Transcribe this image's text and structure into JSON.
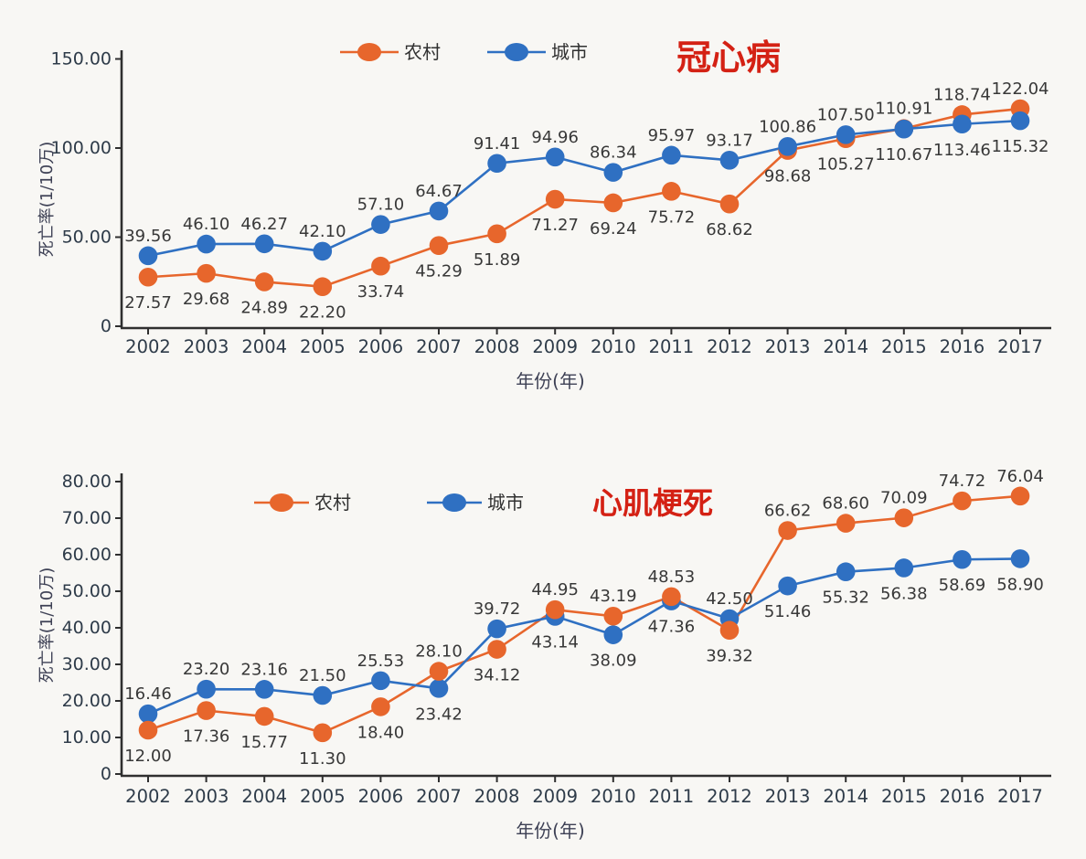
{
  "page": {
    "background": "#f8f7f4"
  },
  "colors": {
    "rural": "#e7662c",
    "urban": "#2f70c2",
    "chart_title": "#d42114",
    "data_label": "#383838",
    "tick_label": "#2e3b49",
    "axis_title": "#3e4155",
    "axis_line": "#2f2f2f",
    "legend_text": "#303030"
  },
  "legend": {
    "rural": "农村",
    "urban": "城市"
  },
  "axes": {
    "x_title": "年份(年)",
    "y_title": "死亡率(1/10万)"
  },
  "chart_data": [
    {
      "type": "line",
      "title": "冠心病",
      "xlabel": "年份(年)",
      "ylabel": "死亡率(1/10万)",
      "x": [
        "2002",
        "2003",
        "2004",
        "2005",
        "2006",
        "2007",
        "2008",
        "2009",
        "2010",
        "2011",
        "2012",
        "2013",
        "2014",
        "2015",
        "2016",
        "2017"
      ],
      "ylim": [
        0,
        150
      ],
      "ytick_values": [
        0,
        50,
        100,
        150
      ],
      "ytick_labels": [
        "0",
        "50.00",
        "100.00",
        "150.00"
      ],
      "grid": false,
      "legend_position": "top-center",
      "value_format": "0.00",
      "series": [
        {
          "name": "农村",
          "key": "rural",
          "values": [
            27.57,
            29.68,
            24.89,
            22.2,
            33.74,
            45.29,
            51.89,
            71.27,
            69.24,
            75.72,
            68.62,
            98.68,
            105.27,
            110.91,
            118.74,
            122.04
          ]
        },
        {
          "name": "城市",
          "key": "urban",
          "values": [
            39.56,
            46.1,
            46.27,
            42.1,
            57.1,
            64.67,
            91.41,
            94.96,
            86.34,
            95.97,
            93.17,
            100.86,
            107.5,
            110.67,
            113.46,
            115.32
          ]
        }
      ]
    },
    {
      "type": "line",
      "title": "心肌梗死",
      "xlabel": "年份(年)",
      "ylabel": "死亡率(1/10万)",
      "x": [
        "2002",
        "2003",
        "2004",
        "2005",
        "2006",
        "2007",
        "2008",
        "2009",
        "2010",
        "2011",
        "2012",
        "2013",
        "2014",
        "2015",
        "2016",
        "2017"
      ],
      "ylim": [
        0,
        80
      ],
      "ytick_values": [
        0,
        10,
        20,
        30,
        40,
        50,
        60,
        70,
        80
      ],
      "ytick_labels": [
        "0",
        "10.00",
        "20.00",
        "30.00",
        "40.00",
        "50.00",
        "60.00",
        "70.00",
        "80.00"
      ],
      "grid": false,
      "legend_position": "top-center",
      "value_format": "0.00",
      "series": [
        {
          "name": "农村",
          "key": "rural",
          "values": [
            12.0,
            17.36,
            15.77,
            11.3,
            18.4,
            28.1,
            34.12,
            44.95,
            43.19,
            48.53,
            39.32,
            66.62,
            68.6,
            70.09,
            74.72,
            76.04
          ]
        },
        {
          "name": "城市",
          "key": "urban",
          "values": [
            16.46,
            23.2,
            23.16,
            21.5,
            25.53,
            23.42,
            39.72,
            43.14,
            38.09,
            47.36,
            42.5,
            51.46,
            55.32,
            56.38,
            58.69,
            58.9
          ]
        }
      ]
    }
  ]
}
